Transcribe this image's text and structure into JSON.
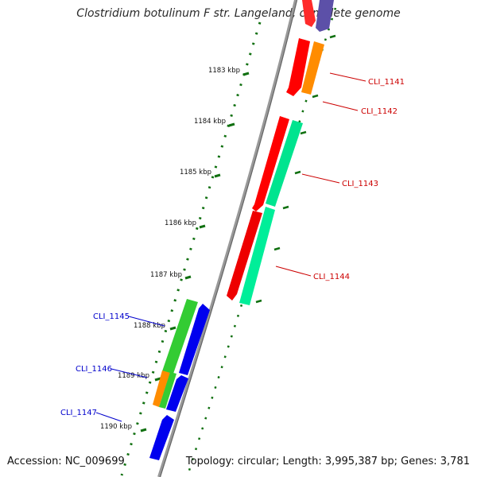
{
  "title": "Clostridium botulinum F str. Langeland, complete genome",
  "footer": {
    "accession": "Accession: NC_009699",
    "summary": "Topology: circular; Length: 3,995,387 bp; Genes: 3,781"
  },
  "scale_labels": [
    "1183 kbp",
    "1184 kbp",
    "1185 kbp",
    "1186 kbp",
    "1187 kbp",
    "1188 kbp",
    "1189 kbp",
    "1190 kbp"
  ],
  "genes": {
    "forward": [
      "CLI_1141",
      "CLI_1142",
      "CLI_1143",
      "CLI_1144"
    ],
    "reverse": [
      "CLI_1145",
      "CLI_1146",
      "CLI_1147"
    ]
  },
  "colors": {
    "forward_label": "#cc0000",
    "reverse_label": "#0000cc",
    "red_gene": "#ff0000",
    "orange_gene": "#ff8c00",
    "teal_gene": "#00ee99",
    "green_gene": "#33cc33",
    "blue_gene": "#0000ee",
    "purple_gene": "#5555aa",
    "tick": "#107010",
    "backbone": "#888888"
  }
}
